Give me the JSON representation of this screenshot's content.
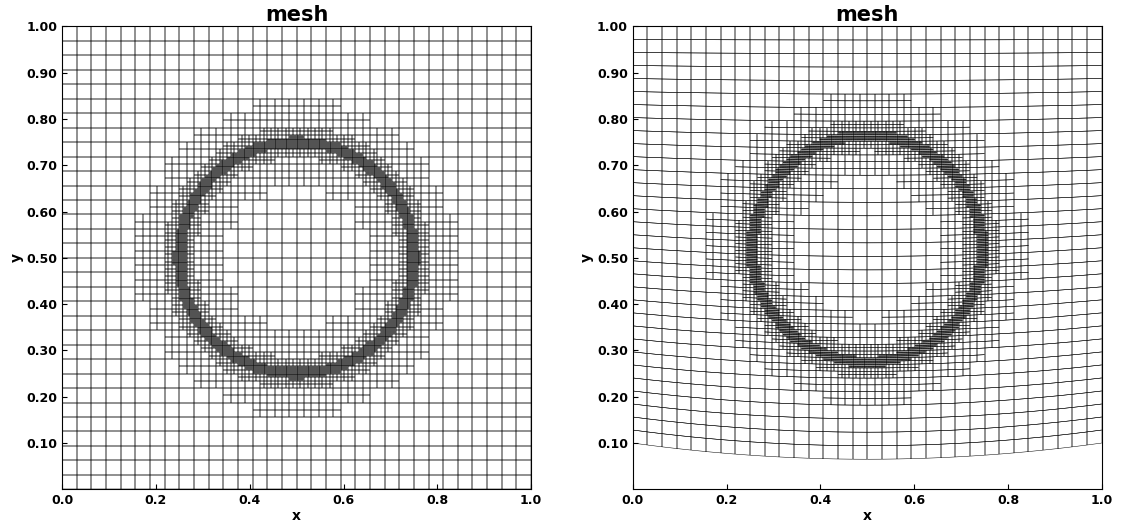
{
  "chart_data": [
    {
      "type": "mesh",
      "title": "mesh",
      "x_label": "x",
      "y_label": "y",
      "xlim": [
        0.0,
        1.0
      ],
      "ylim": [
        0.0,
        1.0
      ],
      "xticks": [
        0.0,
        0.2,
        0.4,
        0.6,
        0.8,
        1.0
      ],
      "yticks": [
        {
          "value": 0.1,
          "label": "0.10"
        },
        {
          "value": 0.2,
          "label": "0.20"
        },
        {
          "value": 0.3,
          "label": "0.30"
        },
        {
          "value": 0.4,
          "label": "0.40"
        },
        {
          "value": 0.5,
          "label": "0.50"
        },
        {
          "value": 0.6,
          "label": "0.60"
        },
        {
          "value": 0.7,
          "label": "0.70"
        },
        {
          "value": 0.8,
          "label": "0.80"
        },
        {
          "value": 0.9,
          "label": "0.90"
        },
        {
          "value": 1.0,
          "label": "1.00"
        }
      ],
      "circle": {
        "x": 0.5,
        "y": 0.5,
        "r": 0.25
      },
      "bottom_boundary": {
        "x": [
          0.0,
          0.5,
          1.0
        ],
        "y": [
          0.0,
          0.0,
          0.0
        ]
      }
    },
    {
      "type": "mesh",
      "title": "mesh",
      "x_label": "x",
      "y_label": "y",
      "xlim": [
        0.0,
        1.0
      ],
      "ylim": [
        0.0,
        1.0
      ],
      "xticks": [
        0.0,
        0.2,
        0.4,
        0.6,
        0.8,
        1.0
      ],
      "yticks": [
        {
          "value": 0.1,
          "label": "0.10"
        },
        {
          "value": 0.2,
          "label": "0.20"
        },
        {
          "value": 0.3,
          "label": "0.30"
        },
        {
          "value": 0.4,
          "label": "0.40"
        },
        {
          "value": 0.5,
          "label": "0.50"
        },
        {
          "value": 0.6,
          "label": "0.60"
        },
        {
          "value": 0.7,
          "label": "0.70"
        },
        {
          "value": 0.8,
          "label": "0.80"
        },
        {
          "value": 0.9,
          "label": "0.90"
        },
        {
          "value": 1.0,
          "label": "1.00"
        }
      ],
      "circle": {
        "x": 0.5,
        "y": 0.52,
        "r": 0.245
      },
      "bottom_boundary": {
        "x": [
          0.0,
          0.5,
          1.0
        ],
        "y": [
          0.1,
          0.065,
          0.1
        ]
      }
    }
  ]
}
